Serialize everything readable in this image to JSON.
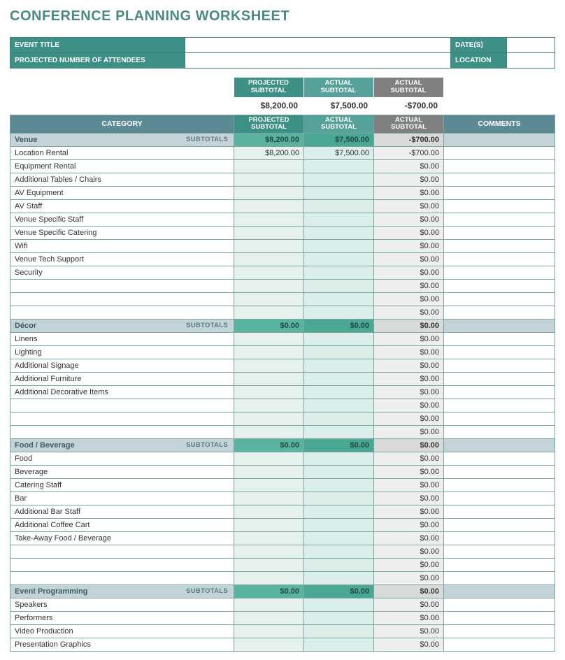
{
  "title": "CONFERENCE PLANNING WORKSHEET",
  "colors": {
    "teal_primary": "#3c9086",
    "teal_light": "#56a199",
    "gray_header": "#808080",
    "slate_header": "#5b8a94",
    "section_bg": "#c3d3d7",
    "section_proj": "#59b39f",
    "section_act": "#4aa794",
    "section_diff": "#d9d9d9",
    "item_proj_bg": "#e6f1ee",
    "item_act_bg": "#dceee9",
    "item_diff_bg": "#eeeeee",
    "border": "#7aa6a2"
  },
  "meta": {
    "event_title_label": "EVENT TITLE",
    "event_title": "",
    "dates_label": "DATE(S)",
    "dates": "",
    "attendees_label": "PROJECTED NUMBER OF ATTENDEES",
    "attendees": "",
    "location_label": "LOCATION",
    "location": ""
  },
  "summary_headers": {
    "projected_l1": "PROJECTED",
    "projected_l2": "SUBTOTAL",
    "actual_l1": "ACTUAL",
    "actual_l2": "SUBTOTAL",
    "diff_l1": "ACTUAL",
    "diff_l2": "SUBTOTAL"
  },
  "summary_values": {
    "projected": "$8,200.00",
    "actual": "$7,500.00",
    "diff": "-$700.00"
  },
  "table_headers": {
    "category": "CATEGORY",
    "projected_l1": "PROJECTED",
    "projected_l2": "SUBTOTAL",
    "actual_l1": "ACTUAL",
    "actual_l2": "SUBTOTAL",
    "diff_l1": "ACTUAL",
    "diff_l2": "SUBTOTAL",
    "comments": "COMMENTS"
  },
  "subtotals_word": "SUBTOTALS",
  "sections": [
    {
      "name": "Venue",
      "projected": "$8,200.00",
      "actual": "$7,500.00",
      "diff": "-$700.00",
      "rows": [
        {
          "name": "Location Rental",
          "projected": "$8,200.00",
          "actual": "$7,500.00",
          "diff": "-$700.00",
          "comments": ""
        },
        {
          "name": "Equipment Rental",
          "projected": "",
          "actual": "",
          "diff": "$0.00",
          "comments": ""
        },
        {
          "name": "Additional Tables / Chairs",
          "projected": "",
          "actual": "",
          "diff": "$0.00",
          "comments": ""
        },
        {
          "name": "AV Equipment",
          "projected": "",
          "actual": "",
          "diff": "$0.00",
          "comments": ""
        },
        {
          "name": "AV Staff",
          "projected": "",
          "actual": "",
          "diff": "$0.00",
          "comments": ""
        },
        {
          "name": "Venue Specific Staff",
          "projected": "",
          "actual": "",
          "diff": "$0.00",
          "comments": ""
        },
        {
          "name": "Venue Specific Catering",
          "projected": "",
          "actual": "",
          "diff": "$0.00",
          "comments": ""
        },
        {
          "name": "Wifi",
          "projected": "",
          "actual": "",
          "diff": "$0.00",
          "comments": ""
        },
        {
          "name": "Venue Tech Support",
          "projected": "",
          "actual": "",
          "diff": "$0.00",
          "comments": ""
        },
        {
          "name": "Security",
          "projected": "",
          "actual": "",
          "diff": "$0.00",
          "comments": ""
        },
        {
          "name": "",
          "projected": "",
          "actual": "",
          "diff": "$0.00",
          "comments": ""
        },
        {
          "name": "",
          "projected": "",
          "actual": "",
          "diff": "$0.00",
          "comments": ""
        },
        {
          "name": "",
          "projected": "",
          "actual": "",
          "diff": "$0.00",
          "comments": ""
        }
      ]
    },
    {
      "name": "Décor",
      "projected": "$0.00",
      "actual": "$0.00",
      "diff": "$0.00",
      "rows": [
        {
          "name": "Linens",
          "projected": "",
          "actual": "",
          "diff": "$0.00",
          "comments": ""
        },
        {
          "name": "Lighting",
          "projected": "",
          "actual": "",
          "diff": "$0.00",
          "comments": ""
        },
        {
          "name": "Additional Signage",
          "projected": "",
          "actual": "",
          "diff": "$0.00",
          "comments": ""
        },
        {
          "name": "Additional Furniture",
          "projected": "",
          "actual": "",
          "diff": "$0.00",
          "comments": ""
        },
        {
          "name": "Additional Decorative Items",
          "projected": "",
          "actual": "",
          "diff": "$0.00",
          "comments": ""
        },
        {
          "name": "",
          "projected": "",
          "actual": "",
          "diff": "$0.00",
          "comments": ""
        },
        {
          "name": "",
          "projected": "",
          "actual": "",
          "diff": "$0.00",
          "comments": ""
        },
        {
          "name": "",
          "projected": "",
          "actual": "",
          "diff": "$0.00",
          "comments": ""
        }
      ]
    },
    {
      "name": "Food / Beverage",
      "projected": "$0.00",
      "actual": "$0.00",
      "diff": "$0.00",
      "rows": [
        {
          "name": "Food",
          "projected": "",
          "actual": "",
          "diff": "$0.00",
          "comments": ""
        },
        {
          "name": "Beverage",
          "projected": "",
          "actual": "",
          "diff": "$0.00",
          "comments": ""
        },
        {
          "name": "Catering Staff",
          "projected": "",
          "actual": "",
          "diff": "$0.00",
          "comments": ""
        },
        {
          "name": "Bar",
          "projected": "",
          "actual": "",
          "diff": "$0.00",
          "comments": ""
        },
        {
          "name": "Additional Bar Staff",
          "projected": "",
          "actual": "",
          "diff": "$0.00",
          "comments": ""
        },
        {
          "name": "Additional Coffee Cart",
          "projected": "",
          "actual": "",
          "diff": "$0.00",
          "comments": ""
        },
        {
          "name": "Take-Away Food / Beverage",
          "projected": "",
          "actual": "",
          "diff": "$0.00",
          "comments": ""
        },
        {
          "name": "",
          "projected": "",
          "actual": "",
          "diff": "$0.00",
          "comments": ""
        },
        {
          "name": "",
          "projected": "",
          "actual": "",
          "diff": "$0.00",
          "comments": ""
        },
        {
          "name": "",
          "projected": "",
          "actual": "",
          "diff": "$0.00",
          "comments": ""
        }
      ]
    },
    {
      "name": "Event Programming",
      "projected": "$0.00",
      "actual": "$0.00",
      "diff": "$0.00",
      "rows": [
        {
          "name": "Speakers",
          "projected": "",
          "actual": "",
          "diff": "$0.00",
          "comments": ""
        },
        {
          "name": "Performers",
          "projected": "",
          "actual": "",
          "diff": "$0.00",
          "comments": ""
        },
        {
          "name": "Video Production",
          "projected": "",
          "actual": "",
          "diff": "$0.00",
          "comments": ""
        },
        {
          "name": "Presentation Graphics",
          "projected": "",
          "actual": "",
          "diff": "$0.00",
          "comments": ""
        }
      ]
    }
  ]
}
